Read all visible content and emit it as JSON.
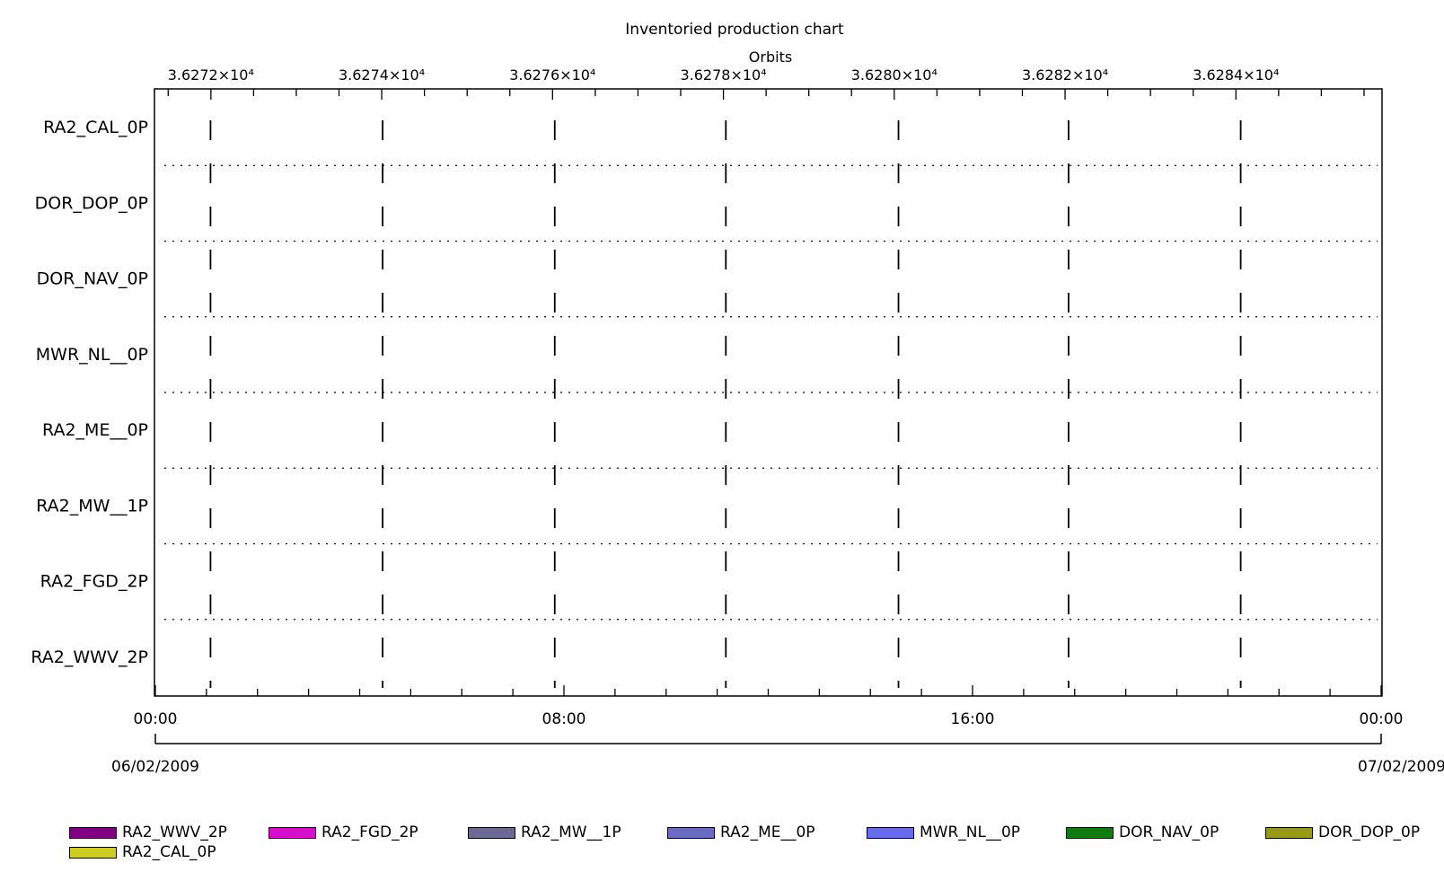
{
  "chart_data": {
    "type": "gantt",
    "title": "Inventoried production chart",
    "top_axis": {
      "label": "Orbits",
      "range": [
        36271.35,
        36285.7
      ],
      "ticks": [
        {
          "value": 36272,
          "label": "3.6272×10⁴"
        },
        {
          "value": 36274,
          "label": "3.6274×10⁴"
        },
        {
          "value": 36276,
          "label": "3.6276×10⁴"
        },
        {
          "value": 36278,
          "label": "3.6278×10⁴"
        },
        {
          "value": 36280,
          "label": "3.6280×10⁴"
        },
        {
          "value": 36282,
          "label": "3.6282×10⁴"
        },
        {
          "value": 36284,
          "label": "3.6284×10⁴"
        }
      ]
    },
    "bottom_axis": {
      "range": [
        "06/02/2009 00:00",
        "07/02/2009 00:00"
      ],
      "range_hours": [
        0,
        24
      ],
      "ticks": [
        {
          "hour": 0,
          "label": "00:00"
        },
        {
          "hour": 8,
          "label": "08:00"
        },
        {
          "hour": 16,
          "label": "16:00"
        },
        {
          "hour": 24,
          "label": "00:00"
        }
      ],
      "date_start": "06/02/2009",
      "date_end": "07/02/2009"
    },
    "orbit_marker_hours": [
      1.08,
      4.45,
      7.82,
      11.17,
      14.55,
      17.88,
      21.25
    ],
    "categories": [
      "RA2_CAL_0P",
      "DOR_DOP_0P",
      "DOR_NAV_0P",
      "MWR_NL__0P",
      "RA2_ME__0P",
      "RA2_MW__1P",
      "RA2_FGD_2P",
      "RA2_WWV_2P"
    ],
    "category_labels": [
      "RA2_CAL_0P",
      "DOR_DOP_0P",
      "DOR_NAV_0P",
      "MWR_NL__0P",
      "RA2_ME__0P",
      "RA2_MW__1P",
      "RA2_FGD_2P",
      "RA2_WWV_2P"
    ],
    "intervals": [],
    "legend": [
      {
        "label": "RA2_WWV_2P",
        "color": "#800080"
      },
      {
        "label": "RA2_FGD_2P",
        "color": "#d60fcf"
      },
      {
        "label": "RA2_MW__1P",
        "color": "#6a6a95"
      },
      {
        "label": "RA2_ME__0P",
        "color": "#6b6bc2"
      },
      {
        "label": "MWR_NL__0P",
        "color": "#6a6aee"
      },
      {
        "label": "DOR_NAV_0P",
        "color": "#107c10"
      },
      {
        "label": "DOR_DOP_0P",
        "color": "#999919"
      },
      {
        "label": "RA2_CAL_0P",
        "color": "#cccc22"
      }
    ],
    "legend_position": "bottom",
    "grid": {
      "row_separators": "dotted",
      "orbit_markers": "dashed"
    }
  }
}
